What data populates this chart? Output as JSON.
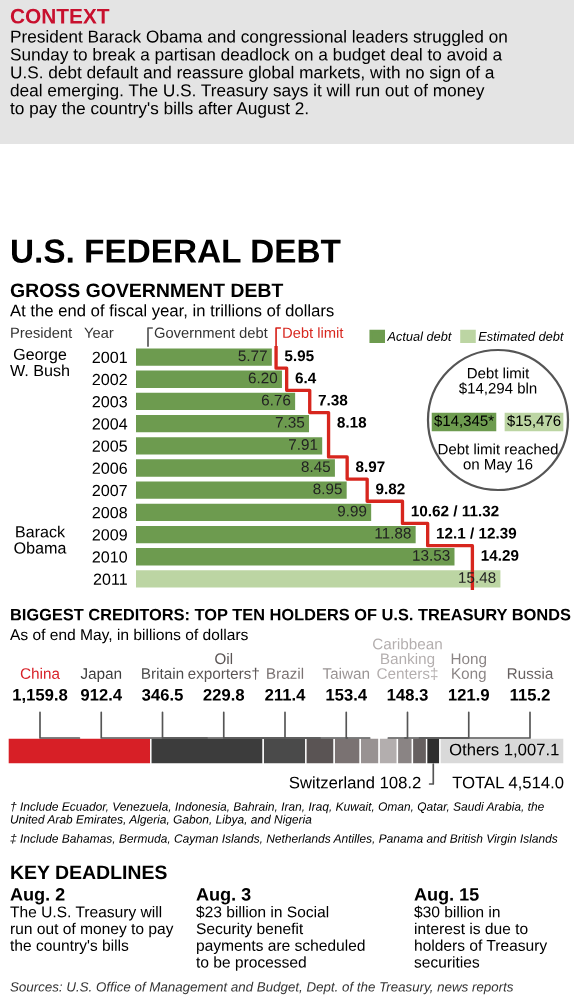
{
  "chart_data": [
    {
      "type": "other",
      "title": "CONTEXT",
      "annotations": [
        "President Barack Obama and congressional leaders struggled on Sunday to break a partisan deadlock on a budget deal to avoid a U.S. debt default and reassure global markets, with no sign of a deal emerging. The U.S. Treasury says it will run out of money to pay the country's bills after August 2."
      ]
    },
    {
      "type": "bar",
      "orientation": "horizontal",
      "title": "GROSS GOVERNMENT DEBT",
      "subtitle": "At the end of fiscal year, in trillions of dollars",
      "categories": [
        "2001",
        "2002",
        "2003",
        "2004",
        "2005",
        "2006",
        "2007",
        "2008",
        "2009",
        "2010",
        "2011"
      ],
      "series": [
        {
          "name": "Actual debt",
          "color": "#6d9b4f",
          "values": [
            5.77,
            6.2,
            6.76,
            7.35,
            7.91,
            8.45,
            8.95,
            9.99,
            11.88,
            13.53,
            null
          ],
          "value_labels": [
            "5.77",
            "6.20",
            "6.76",
            "7.35",
            "7.91",
            "8.45",
            "8.95",
            "9.99",
            "11.88",
            "13.53",
            null
          ]
        },
        {
          "name": "Estimated debt",
          "color": "#bcd5a3",
          "values": [
            null,
            null,
            null,
            null,
            null,
            null,
            null,
            null,
            null,
            null,
            15.48
          ],
          "value_labels": [
            null,
            null,
            null,
            null,
            null,
            null,
            null,
            null,
            null,
            null,
            "15.48"
          ]
        },
        {
          "name": "Debt limit",
          "type": "step",
          "color": "#d7261e",
          "values": [
            5.95,
            6.4,
            7.38,
            8.18,
            8.18,
            8.97,
            9.82,
            11.32,
            12.39,
            14.29,
            14.29
          ],
          "value_labels": [
            "5.95",
            "6.4",
            "7.38",
            "8.18",
            null,
            "8.97",
            "9.82",
            "10.62 / 11.32",
            "12.1 / 12.39",
            "14.29",
            null
          ]
        }
      ],
      "legend": "top right",
      "tick_labels": "y",
      "annotations": [
        "U.S. FEDERAL DEBT",
        "President",
        "Year",
        "Government debt",
        "George W. Bush",
        "Barack Obama",
        "Debt limit $14,294 bln",
        "$14,345*",
        "$15,476",
        "Debt limit reached on May 16"
      ]
    },
    {
      "type": "bar",
      "orientation": "horizontal",
      "stacked": true,
      "title": "BIGGEST CREDITORS: TOP TEN HOLDERS OF U.S. TREASURY BONDS",
      "subtitle": "As of end May, in billions of dollars",
      "categories": [
        null
      ],
      "tick_labels": false,
      "series": [
        {
          "name": "China",
          "color": "#d71f26",
          "values": [
            1159.8
          ],
          "value_labels": [
            "1,159.8"
          ]
        },
        {
          "name": "Japan",
          "color": "#3c3c3c",
          "values": [
            912.4
          ],
          "value_labels": [
            "912.4"
          ]
        },
        {
          "name": "Britain",
          "color": "#4a4a4a",
          "values": [
            346.5
          ],
          "value_labels": [
            "346.5"
          ]
        },
        {
          "name": "Oil exporters†",
          "color": "#5a5454",
          "values": [
            229.8
          ],
          "value_labels": [
            "229.8"
          ]
        },
        {
          "name": "Brazil",
          "color": "#7a7272",
          "values": [
            211.4
          ],
          "value_labels": [
            "211.4"
          ]
        },
        {
          "name": "Taiwan",
          "color": "#989292",
          "values": [
            153.4
          ],
          "value_labels": [
            "153.4"
          ]
        },
        {
          "name": "Caribbean Banking Centers‡",
          "color": "#b3aeae",
          "values": [
            148.3
          ],
          "value_labels": [
            "148.3"
          ]
        },
        {
          "name": "Hong Kong",
          "color": "#8a8484",
          "values": [
            121.9
          ],
          "value_labels": [
            "121.9"
          ]
        },
        {
          "name": "Russia",
          "color": "#666060",
          "values": [
            115.2
          ],
          "value_labels": [
            "115.2"
          ]
        },
        {
          "name": "Switzerland",
          "color": "#2e2e2e",
          "values": [
            108.2
          ],
          "value_labels": [
            "108.2"
          ]
        },
        {
          "name": "Others",
          "color": "#d9d9d9",
          "values": [
            1007.1
          ],
          "value_labels": [
            "1,007.1"
          ]
        }
      ],
      "totals": [
        "TOTAL 4,514.0"
      ],
      "annotations": [
        "† Include Ecuador, Venezuela, Indonesia, Bahrain, Iran, Iraq, Kuwait, Oman, Qatar, Saudi Arabia, the United Arab Emirates, Algeria, Gabon, Libya, and Nigeria",
        "‡ Include Bahamas, Bermuda, Cayman Islands, Netherlands Antilles, Panama and British Virgin Islands"
      ]
    },
    {
      "type": "other",
      "title": "KEY DEADLINES",
      "annotations": [
        "Aug. 2",
        "The U.S. Treasury will run out of money to pay the country's bills",
        "Aug. 3",
        "$23 billion in Social Security benefit payments are scheduled to be processed",
        "Aug. 15",
        "$30 billion in interest is due to holders of Treasury securities",
        "Sources: U.S. Office of Management and Budget, Dept. of the Treasury, news reports"
      ]
    }
  ]
}
